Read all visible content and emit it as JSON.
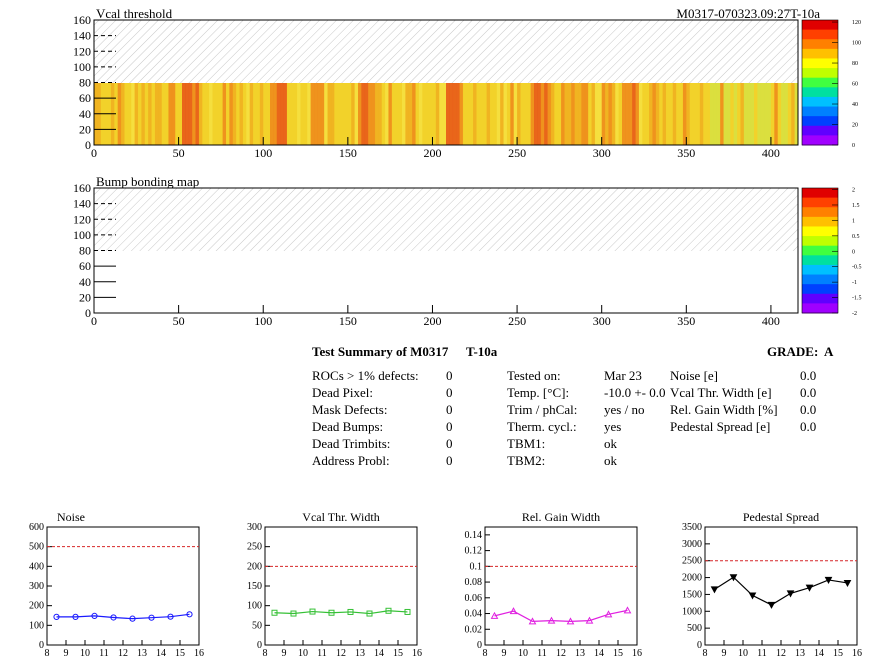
{
  "header": {
    "title": "Vcal threshold",
    "module_id": "M0317-070323.09:27T-10a"
  },
  "colors": {
    "limit_line": "#d62728",
    "noise": "#1a1aff",
    "vcal_width": "#35c035",
    "gain_width": "#e020e0",
    "pedestal": "#000000",
    "hatch": "#c8c8c8"
  },
  "summary": {
    "title": "Test Summary of M0317",
    "temp_label": "T-10a",
    "grade_label": "GRADE:",
    "grade": "A",
    "defects": [
      {
        "label": "ROCs > 1% defects:",
        "value": "0"
      },
      {
        "label": "Dead Pixel:",
        "value": "0"
      },
      {
        "label": "Mask Defects:",
        "value": "0"
      },
      {
        "label": "Dead Bumps:",
        "value": "0"
      },
      {
        "label": "Dead Trimbits:",
        "value": "0"
      },
      {
        "label": "Address Probl:",
        "value": "0"
      }
    ],
    "conditions": [
      {
        "label": "Tested on:",
        "value": "Mar 23"
      },
      {
        "label": "Temp. [°C]:",
        "value": "-10.0 +- 0.0"
      },
      {
        "label": "Trim / phCal:",
        "value": "yes / no"
      },
      {
        "label": "Therm. cycl.:",
        "value": "yes"
      },
      {
        "label": "TBM1:",
        "value": "ok"
      },
      {
        "label": "TBM2:",
        "value": "ok"
      }
    ],
    "widths": [
      {
        "label": "Noise [e]",
        "value": "0.0"
      },
      {
        "label": "Vcal Thr. Width [e]",
        "value": "0.0"
      },
      {
        "label": "Rel. Gain Width [%]",
        "value": "0.0"
      },
      {
        "label": "Pedestal Spread [e]",
        "value": "0.0"
      }
    ]
  },
  "chart_data": [
    {
      "type": "heatmap",
      "title": "Vcal threshold",
      "x_ticks": [
        0,
        50,
        100,
        150,
        200,
        250,
        300,
        350,
        400
      ],
      "y_ticks": [
        0,
        20,
        40,
        60,
        80,
        100,
        120,
        140,
        160
      ],
      "xlim": [
        0,
        416
      ],
      "ylim": [
        0,
        160
      ],
      "filled_rows": [
        0,
        80
      ],
      "empty_rows": [
        80,
        160
      ],
      "color_scale": {
        "min": 0,
        "max": 130,
        "ticks": [
          0,
          20,
          40,
          60,
          80,
          100,
          120
        ]
      },
      "dominant_value_range": [
        80,
        110
      ],
      "high_value_columns": [
        52,
        104,
        156,
        208,
        260,
        312
      ],
      "low_value_region_x": [
        360,
        416
      ]
    },
    {
      "type": "heatmap",
      "title": "Bump bonding map",
      "x_ticks": [
        0,
        50,
        100,
        150,
        200,
        250,
        300,
        350,
        400
      ],
      "y_ticks": [
        0,
        20,
        40,
        60,
        80,
        100,
        120,
        140,
        160
      ],
      "xlim": [
        0,
        416
      ],
      "ylim": [
        0,
        160
      ],
      "empty_rows": [
        80,
        160
      ],
      "color_scale": {
        "min": -2,
        "max": 2,
        "ticks": [
          "-2",
          "-1.5",
          "-1",
          "-0.5",
          "0",
          "0.5",
          "1",
          "1.5",
          "2"
        ]
      }
    },
    {
      "type": "line",
      "title": "Noise",
      "x": [
        8.5,
        9.5,
        10.5,
        11.5,
        12.5,
        13.5,
        14.5,
        15.5
      ],
      "values": [
        143,
        143,
        148,
        140,
        134,
        139,
        144,
        156
      ],
      "xlim": [
        8,
        16
      ],
      "ylim": [
        0,
        600
      ],
      "x_ticks": [
        "8",
        "9",
        "10",
        "11",
        "12",
        "13",
        "14",
        "15",
        "16"
      ],
      "y_ticks": [
        "0",
        "100",
        "200",
        "300",
        "400",
        "500",
        "600"
      ],
      "limit": 500,
      "marker": "circle",
      "color": "#1a1aff"
    },
    {
      "type": "line",
      "title": "Vcal Thr. Width",
      "x": [
        8.5,
        9.5,
        10.5,
        11.5,
        12.5,
        13.5,
        14.5,
        15.5
      ],
      "values": [
        82,
        80,
        85,
        82,
        84,
        80,
        87,
        84
      ],
      "xlim": [
        8,
        16
      ],
      "ylim": [
        0,
        300
      ],
      "x_ticks": [
        "8",
        "9",
        "10",
        "11",
        "12",
        "13",
        "14",
        "15",
        "16"
      ],
      "y_ticks": [
        "0",
        "50",
        "100",
        "150",
        "200",
        "250",
        "300"
      ],
      "limit": 200,
      "marker": "square",
      "color": "#35c035"
    },
    {
      "type": "line",
      "title": "Rel. Gain Width",
      "x": [
        8.5,
        9.5,
        10.5,
        11.5,
        12.5,
        13.5,
        14.5,
        15.5
      ],
      "values": [
        0.037,
        0.043,
        0.03,
        0.031,
        0.03,
        0.031,
        0.039,
        0.044
      ],
      "xlim": [
        8,
        16
      ],
      "ylim": [
        0,
        0.15
      ],
      "x_ticks": [
        "8",
        "9",
        "10",
        "11",
        "12",
        "13",
        "14",
        "15",
        "16"
      ],
      "y_ticks": [
        "0",
        "0.02",
        "0.04",
        "0.06",
        "0.08",
        "0.1",
        "0.12",
        "0.14"
      ],
      "limit": 0.1,
      "marker": "triangle-up",
      "color": "#e020e0"
    },
    {
      "type": "line",
      "title": "Pedestal Spread",
      "x": [
        8.5,
        9.5,
        10.5,
        11.5,
        12.5,
        13.5,
        14.5,
        15.5
      ],
      "values": [
        1650,
        2010,
        1470,
        1190,
        1530,
        1700,
        1930,
        1840
      ],
      "xlim": [
        8,
        16
      ],
      "ylim": [
        0,
        3500
      ],
      "x_ticks": [
        "8",
        "9",
        "10",
        "11",
        "12",
        "13",
        "14",
        "15",
        "16"
      ],
      "y_ticks": [
        "0",
        "500",
        "1000",
        "1500",
        "2000",
        "2500",
        "3000",
        "3500"
      ],
      "limit": 2500,
      "marker": "triangle-down",
      "color": "#000000"
    }
  ]
}
